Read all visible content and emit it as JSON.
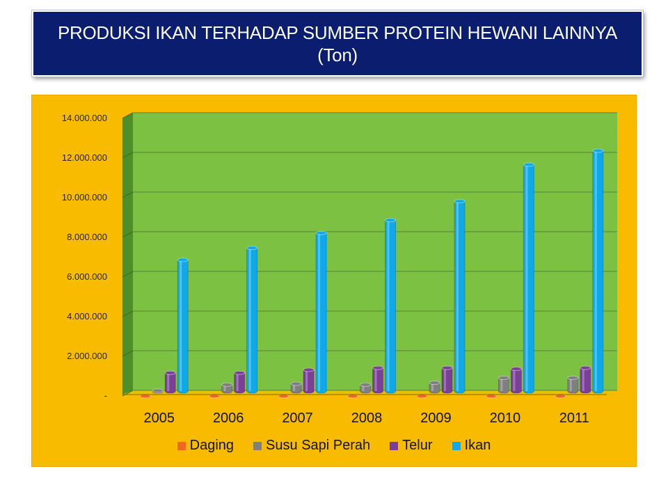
{
  "header": {
    "title_line1": "PRODUKSI IKAN TERHADAP SUMBER PROTEIN HEWANI LAINNYA",
    "title_line2": "(Ton)"
  },
  "colors": {
    "plot_area": "#7cc142",
    "plot_wall_side": "#4e8f2a",
    "frame": "#f9bb00",
    "title_box": "#0a1d6e"
  },
  "chart_data": {
    "type": "bar",
    "title": "PRODUKSI IKAN TERHADAP SUMBER PROTEIN HEWANI LAINNYA (Ton)",
    "categories": [
      "2005",
      "2006",
      "2007",
      "2008",
      "2009",
      "2010",
      "2011"
    ],
    "series": [
      {
        "name": "Daging",
        "color": "#f26522",
        "values": [
          20000,
          20000,
          20000,
          20000,
          20000,
          20000,
          20000
        ]
      },
      {
        "name": "Susu Sapi Perah",
        "color": "#7f7f7f",
        "values": [
          300000,
          600000,
          650000,
          600000,
          700000,
          950000,
          950000
        ]
      },
      {
        "name": "Telur",
        "color": "#7b3f97",
        "values": [
          1200000,
          1200000,
          1350000,
          1450000,
          1450000,
          1400000,
          1450000
        ]
      },
      {
        "name": "Ikan",
        "color": "#0fa9ea",
        "values": [
          6900000,
          7500000,
          8250000,
          8900000,
          9850000,
          11700000,
          12400000
        ]
      }
    ],
    "ylim": [
      0,
      14000000
    ],
    "yticks": [
      0,
      2000000,
      4000000,
      6000000,
      8000000,
      10000000,
      12000000,
      14000000
    ],
    "ytick_labels": [
      "-",
      "2.000.000",
      "4.000.000",
      "6.000.000",
      "8.000.000",
      "10.000.000",
      "12.000.000",
      "14.000.000"
    ],
    "grid": true,
    "legend_position": "bottom"
  }
}
